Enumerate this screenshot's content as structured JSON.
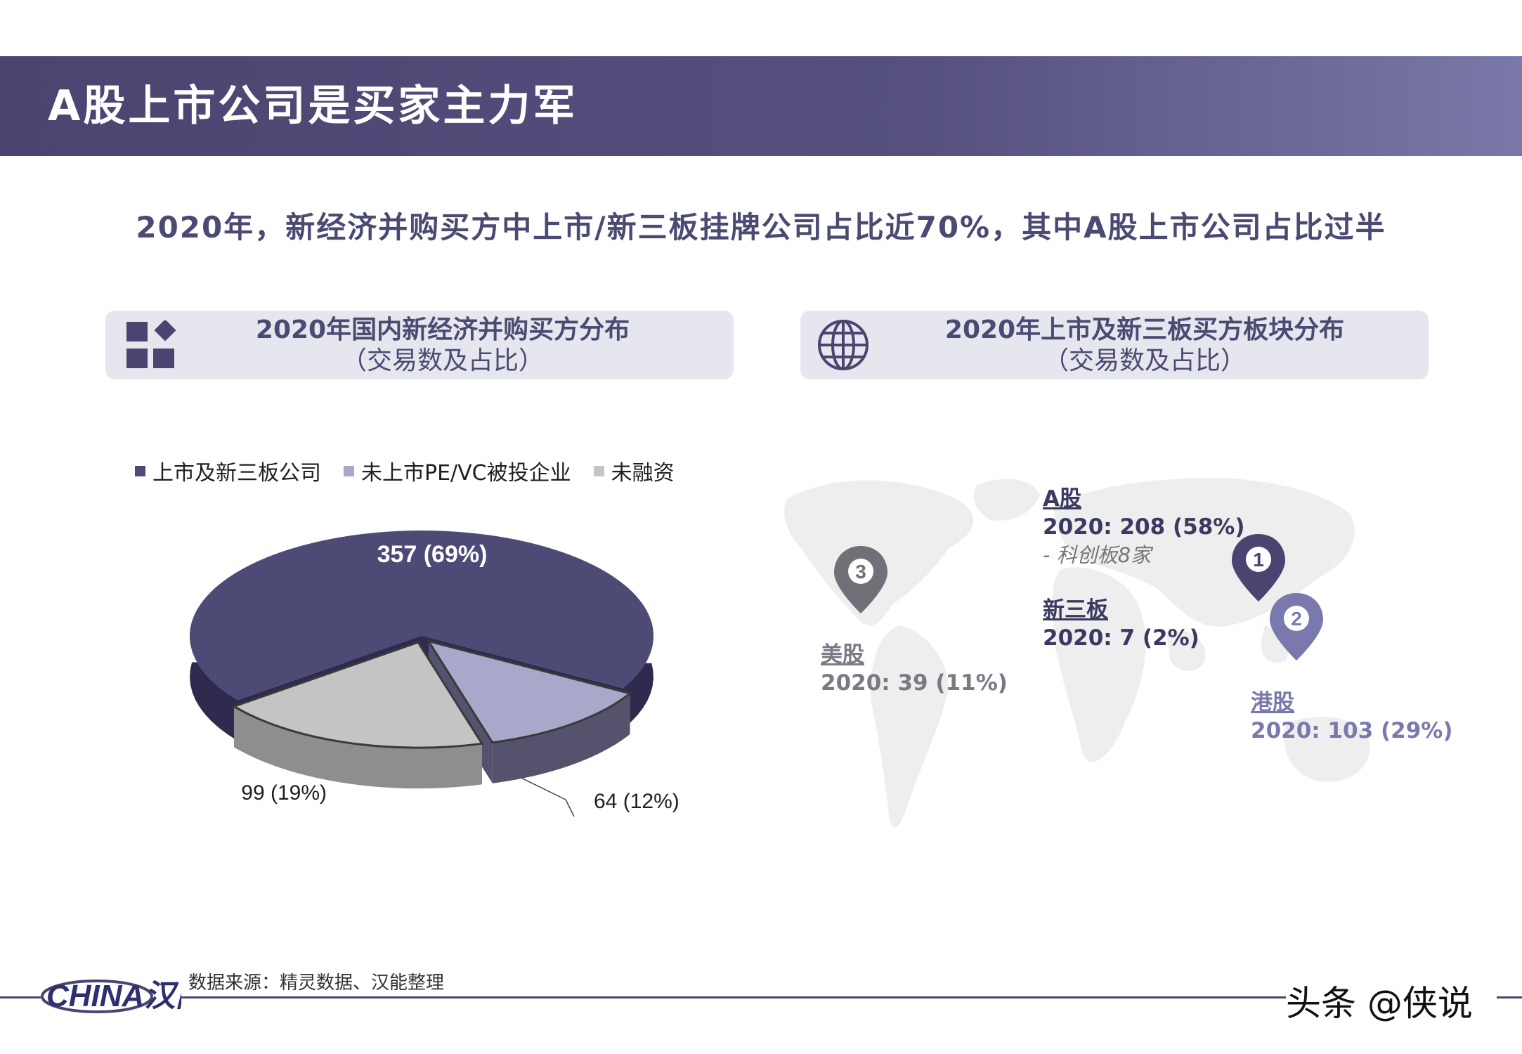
{
  "header": {
    "title": "A股上市公司是买家主力军"
  },
  "subtitle": "2020年，新经济并购买方中上市/新三板挂牌公司占比近70%，其中A股上市公司占比过半",
  "left_panel": {
    "title_line1": "2020年国内新经济并购买方分布",
    "title_line2": "（交易数及占比）",
    "icon": "grid-squares-icon"
  },
  "right_panel": {
    "title_line1": "2020年上市及新三板买方板块分布",
    "title_line2": "（交易数及占比）",
    "icon": "globe-icon"
  },
  "colors": {
    "banner": "#4a4470",
    "dark_slice": "#4e4a76",
    "lavender_slice": "#a9a8cb",
    "grey_slice": "#c4c4c4"
  },
  "chart_data": {
    "type": "pie",
    "title": "",
    "legend": [
      "上市及新三板公司",
      "未上市PE/VC被投企业",
      "未融资"
    ],
    "legend_position": "top",
    "slices": [
      {
        "name": "上市及新三板公司",
        "value": 357,
        "percent": 69,
        "label": "357 (69%)",
        "color": "#4e4a76"
      },
      {
        "name": "未上市PE/VC被投企业",
        "value": 64,
        "percent": 12,
        "label": "64 (12%)",
        "color": "#a9a8cb"
      },
      {
        "name": "未融资",
        "value": 99,
        "percent": 19,
        "label": "99 (19%)",
        "color": "#c4c4c4"
      }
    ]
  },
  "map": {
    "a_share": {
      "heading": "A股",
      "value": "2020: 208 (58%)",
      "note": "-   科创板8家"
    },
    "neeq": {
      "heading": "新三板",
      "value": "2020: 7 (2%)"
    },
    "us": {
      "heading": "美股",
      "value": "2020: 39 (11%)"
    },
    "hk": {
      "heading": "港股",
      "value": "2020: 103 (29%)"
    },
    "pins": [
      {
        "number": "1",
        "color": "#4a4470"
      },
      {
        "number": "2",
        "color": "#7a79ad"
      },
      {
        "number": "3",
        "color": "#707078"
      }
    ]
  },
  "footer": {
    "source": "数据来源：精灵数据、汉能整理",
    "logo_text": "CHINA汉能",
    "watermark": "头条 @侠说"
  }
}
